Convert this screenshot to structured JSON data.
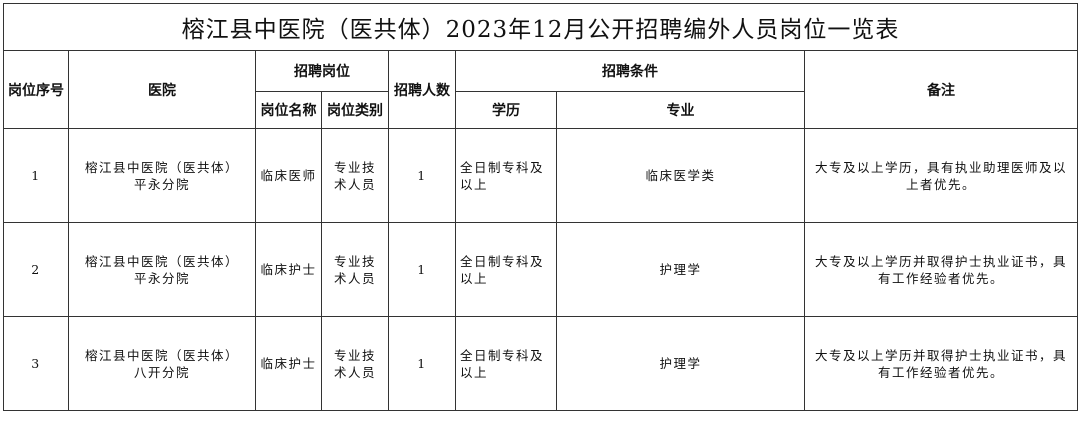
{
  "title": "榕江县中医院（医共体）2023年12月公开招聘编外人员岗位一览表",
  "headers": {
    "seq": "岗位序号",
    "hospital": "医院",
    "position_group": "招聘岗位",
    "position_name": "岗位名称",
    "position_type": "岗位类别",
    "count": "招聘人数",
    "conditions_group": "招聘条件",
    "education": "学历",
    "major": "专业",
    "notes": "备注"
  },
  "rows": [
    {
      "seq": "1",
      "hospital": "榕江县中医院（医共体）平永分院",
      "position_name": "临床医师",
      "position_type": "专业技术人员",
      "count": "1",
      "education": "全日制专科及以上",
      "major": "临床医学类",
      "notes": "大专及以上学历，具有执业助理医师及以上者优先。"
    },
    {
      "seq": "2",
      "hospital": "榕江县中医院（医共体）平永分院",
      "position_name": "临床护士",
      "position_type": "专业技术人员",
      "count": "1",
      "education": "全日制专科及以上",
      "major": "护理学",
      "notes": "大专及以上学历并取得护士执业证书，具有工作经验者优先。"
    },
    {
      "seq": "3",
      "hospital": "榕江县中医院（医共体）八开分院",
      "position_name": "临床护士",
      "position_type": "专业技术人员",
      "count": "1",
      "education": "全日制专科及以上",
      "major": "护理学",
      "notes": "大专及以上学历并取得护士执业证书，具有工作经验者优先。"
    }
  ]
}
